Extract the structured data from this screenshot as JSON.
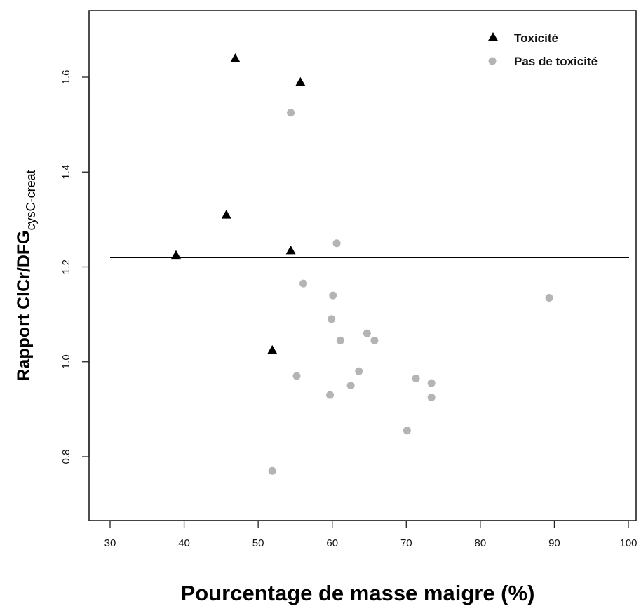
{
  "chart_data": {
    "type": "scatter",
    "title": "",
    "xlabel": "Pourcentage de masse maigre (%)",
    "ylabel": {
      "main": "Rapport ClCr/DFG",
      "subscript": "cysC-creat"
    },
    "xlim": [
      30,
      100
    ],
    "ylim": [
      0.75,
      1.65
    ],
    "xticks": [
      "30",
      "40",
      "50",
      "60",
      "70",
      "80",
      "90",
      "100"
    ],
    "yticks": [
      "0.8",
      "1.0",
      "1.2",
      "1.4",
      "1.6"
    ],
    "grid": false,
    "legend_position": "top-right",
    "reference_line": {
      "y": 1.22
    },
    "series": [
      {
        "name": "Toxicité",
        "marker": "triangle",
        "color": "#000000",
        "points": [
          {
            "x": 38.9,
            "y": 1.225
          },
          {
            "x": 45.7,
            "y": 1.31
          },
          {
            "x": 46.9,
            "y": 1.64
          },
          {
            "x": 51.9,
            "y": 1.025
          },
          {
            "x": 54.4,
            "y": 1.235
          },
          {
            "x": 55.7,
            "y": 1.59
          }
        ]
      },
      {
        "name": "Pas de toxicité",
        "marker": "circle",
        "color": "#b4b4b4",
        "points": [
          {
            "x": 51.9,
            "y": 0.77
          },
          {
            "x": 54.4,
            "y": 1.525
          },
          {
            "x": 55.2,
            "y": 0.97
          },
          {
            "x": 56.1,
            "y": 1.165
          },
          {
            "x": 59.7,
            "y": 0.93
          },
          {
            "x": 59.9,
            "y": 1.09
          },
          {
            "x": 60.1,
            "y": 1.14
          },
          {
            "x": 60.6,
            "y": 1.25
          },
          {
            "x": 61.1,
            "y": 1.045
          },
          {
            "x": 62.5,
            "y": 0.95
          },
          {
            "x": 63.6,
            "y": 0.98
          },
          {
            "x": 64.7,
            "y": 1.06
          },
          {
            "x": 65.7,
            "y": 1.045
          },
          {
            "x": 70.1,
            "y": 0.855
          },
          {
            "x": 71.3,
            "y": 0.965
          },
          {
            "x": 73.4,
            "y": 0.955
          },
          {
            "x": 73.4,
            "y": 0.925
          },
          {
            "x": 89.3,
            "y": 1.135
          }
        ]
      }
    ]
  }
}
